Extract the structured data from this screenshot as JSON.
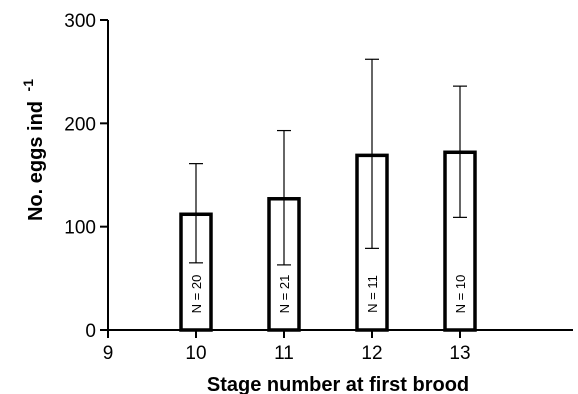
{
  "chart_data": {
    "type": "bar",
    "xlabel": "Stage number at first brood",
    "ylabel": "No. eggs ind",
    "ylabel_superscript": "-1",
    "ylim": [
      0,
      300
    ],
    "y_ticks": [
      "0",
      "100",
      "200",
      "300"
    ],
    "x_ticks": [
      "9",
      "10",
      "11",
      "12",
      "13"
    ],
    "xlim": [
      9,
      13.9
    ],
    "grid": false,
    "bars": [
      {
        "x": 10,
        "value": 112,
        "error_low": 65,
        "error_high": 161,
        "n_label": "N = 20"
      },
      {
        "x": 11,
        "value": 127,
        "error_low": 63,
        "error_high": 193,
        "n_label": "N = 21"
      },
      {
        "x": 12,
        "value": 169,
        "error_low": 79,
        "error_high": 262,
        "n_label": "N = 11"
      },
      {
        "x": 13,
        "value": 172,
        "error_low": 109,
        "error_high": 236,
        "n_label": "N = 10"
      }
    ]
  }
}
